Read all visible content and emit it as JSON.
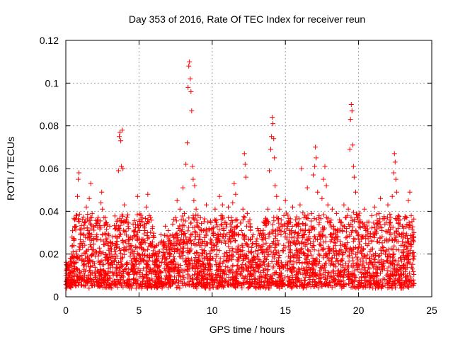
{
  "chart_data": {
    "type": "scatter",
    "title": "Day 353 of 2016, Rate Of TEC Index for receiver reun",
    "xlabel": "GPS time / hours",
    "ylabel": "ROTI / TECUs",
    "xlim": [
      0,
      25
    ],
    "ylim": [
      0,
      0.12
    ],
    "grid": true,
    "marker": "+",
    "marker_color": "#ff0000",
    "x_ticks": [
      0,
      5,
      10,
      15,
      20,
      25
    ],
    "x_tick_labels": [
      "0",
      "5",
      "10",
      "15",
      "20",
      "25"
    ],
    "y_ticks": [
      0,
      0.02,
      0.04,
      0.06,
      0.08,
      0.1,
      0.12
    ],
    "y_tick_labels": [
      "0",
      "0.02",
      "0.04",
      "0.06",
      "0.08",
      "0.1",
      "0.12"
    ],
    "series": [
      {
        "name": "ROTI",
        "points": [
          [
            0.05,
            0.011
          ],
          [
            0.1,
            0.015
          ],
          [
            0.2,
            0.009
          ],
          [
            0.3,
            0.018
          ],
          [
            0.4,
            0.012
          ],
          [
            0.5,
            0.021
          ],
          [
            0.6,
            0.014
          ],
          [
            0.7,
            0.033
          ],
          [
            0.75,
            0.038
          ],
          [
            0.8,
            0.047
          ],
          [
            0.85,
            0.055
          ],
          [
            0.9,
            0.058
          ],
          [
            1.0,
            0.029
          ],
          [
            1.1,
            0.017
          ],
          [
            1.2,
            0.026
          ],
          [
            1.3,
            0.035
          ],
          [
            1.4,
            0.042
          ],
          [
            1.5,
            0.031
          ],
          [
            1.6,
            0.046
          ],
          [
            1.7,
            0.053
          ],
          [
            1.8,
            0.039
          ],
          [
            1.9,
            0.022
          ],
          [
            2.0,
            0.019
          ],
          [
            2.1,
            0.028
          ],
          [
            2.2,
            0.035
          ],
          [
            2.3,
            0.016
          ],
          [
            2.4,
            0.044
          ],
          [
            2.45,
            0.049
          ],
          [
            2.5,
            0.041
          ],
          [
            2.6,
            0.037
          ],
          [
            2.7,
            0.029
          ],
          [
            2.8,
            0.018
          ],
          [
            2.9,
            0.024
          ],
          [
            3.0,
            0.033
          ],
          [
            3.1,
            0.021
          ],
          [
            3.2,
            0.028
          ],
          [
            3.3,
            0.017
          ],
          [
            3.4,
            0.032
          ],
          [
            3.5,
            0.026
          ],
          [
            3.6,
            0.059
          ],
          [
            3.65,
            0.075
          ],
          [
            3.7,
            0.077
          ],
          [
            3.75,
            0.073
          ],
          [
            3.8,
            0.061
          ],
          [
            3.85,
            0.078
          ],
          [
            3.9,
            0.06
          ],
          [
            4.0,
            0.043
          ],
          [
            4.1,
            0.022
          ],
          [
            4.2,
            0.016
          ],
          [
            4.3,
            0.028
          ],
          [
            4.4,
            0.019
          ],
          [
            4.5,
            0.024
          ],
          [
            4.6,
            0.034
          ],
          [
            4.7,
            0.013
          ],
          [
            4.8,
            0.029
          ],
          [
            4.9,
            0.047
          ],
          [
            5.0,
            0.036
          ],
          [
            5.1,
            0.018
          ],
          [
            5.2,
            0.027
          ],
          [
            5.3,
            0.022
          ],
          [
            5.4,
            0.031
          ],
          [
            5.5,
            0.042
          ],
          [
            5.6,
            0.048
          ],
          [
            5.7,
            0.038
          ],
          [
            5.8,
            0.025
          ],
          [
            5.9,
            0.019
          ],
          [
            6.0,
            0.028
          ],
          [
            6.1,
            0.016
          ],
          [
            6.2,
            0.024
          ],
          [
            6.3,
            0.021
          ],
          [
            6.4,
            0.012
          ],
          [
            6.5,
            0.029
          ],
          [
            6.6,
            0.018
          ],
          [
            6.7,
            0.026
          ],
          [
            6.8,
            0.033
          ],
          [
            6.9,
            0.022
          ],
          [
            7.0,
            0.031
          ],
          [
            7.1,
            0.019
          ],
          [
            7.2,
            0.025
          ],
          [
            7.3,
            0.034
          ],
          [
            7.4,
            0.028
          ],
          [
            7.5,
            0.037
          ],
          [
            7.6,
            0.045
          ],
          [
            7.7,
            0.032
          ],
          [
            7.8,
            0.041
          ],
          [
            7.9,
            0.029
          ],
          [
            8.0,
            0.051
          ],
          [
            8.1,
            0.039
          ],
          [
            8.2,
            0.062
          ],
          [
            8.3,
            0.072
          ],
          [
            8.35,
            0.098
          ],
          [
            8.4,
            0.108
          ],
          [
            8.45,
            0.11
          ],
          [
            8.5,
            0.102
          ],
          [
            8.55,
            0.096
          ],
          [
            8.6,
            0.087
          ],
          [
            8.65,
            0.061
          ],
          [
            8.7,
            0.055
          ],
          [
            8.75,
            0.045
          ],
          [
            8.8,
            0.052
          ],
          [
            8.9,
            0.041
          ],
          [
            9.0,
            0.033
          ],
          [
            9.1,
            0.028
          ],
          [
            9.2,
            0.037
          ],
          [
            9.3,
            0.022
          ],
          [
            9.4,
            0.031
          ],
          [
            9.5,
            0.026
          ],
          [
            9.6,
            0.043
          ],
          [
            9.7,
            0.035
          ],
          [
            9.8,
            0.018
          ],
          [
            9.9,
            0.027
          ],
          [
            10.0,
            0.032
          ],
          [
            10.1,
            0.024
          ],
          [
            10.2,
            0.041
          ],
          [
            10.3,
            0.036
          ],
          [
            10.4,
            0.029
          ],
          [
            10.5,
            0.047
          ],
          [
            10.6,
            0.038
          ],
          [
            10.7,
            0.043
          ],
          [
            10.8,
            0.031
          ],
          [
            10.9,
            0.025
          ],
          [
            11.0,
            0.034
          ],
          [
            11.1,
            0.042
          ],
          [
            11.2,
            0.028
          ],
          [
            11.3,
            0.037
          ],
          [
            11.4,
            0.044
          ],
          [
            11.5,
            0.053
          ],
          [
            11.6,
            0.048
          ],
          [
            11.7,
            0.036
          ],
          [
            11.8,
            0.029
          ],
          [
            11.9,
            0.022
          ],
          [
            12.0,
            0.031
          ],
          [
            12.1,
            0.041
          ],
          [
            12.2,
            0.067
          ],
          [
            12.25,
            0.062
          ],
          [
            12.3,
            0.056
          ],
          [
            12.4,
            0.039
          ],
          [
            12.5,
            0.027
          ],
          [
            12.6,
            0.033
          ],
          [
            12.7,
            0.021
          ],
          [
            12.8,
            0.029
          ],
          [
            12.9,
            0.018
          ],
          [
            13.0,
            0.025
          ],
          [
            13.1,
            0.032
          ],
          [
            13.2,
            0.024
          ],
          [
            13.3,
            0.031
          ],
          [
            13.4,
            0.027
          ],
          [
            13.5,
            0.035
          ],
          [
            13.6,
            0.029
          ],
          [
            13.7,
            0.022
          ],
          [
            13.8,
            0.041
          ],
          [
            13.9,
            0.059
          ],
          [
            14.0,
            0.069
          ],
          [
            14.05,
            0.075
          ],
          [
            14.1,
            0.084
          ],
          [
            14.15,
            0.081
          ],
          [
            14.2,
            0.074
          ],
          [
            14.25,
            0.065
          ],
          [
            14.3,
            0.052
          ],
          [
            14.4,
            0.047
          ],
          [
            14.5,
            0.036
          ],
          [
            14.6,
            0.041
          ],
          [
            14.7,
            0.029
          ],
          [
            14.8,
            0.033
          ],
          [
            14.9,
            0.038
          ],
          [
            15.0,
            0.045
          ],
          [
            15.1,
            0.027
          ],
          [
            15.2,
            0.034
          ],
          [
            15.3,
            0.022
          ],
          [
            15.4,
            0.031
          ],
          [
            15.5,
            0.042
          ],
          [
            15.6,
            0.028
          ],
          [
            15.7,
            0.036
          ],
          [
            15.8,
            0.025
          ],
          [
            15.9,
            0.033
          ],
          [
            16.0,
            0.043
          ],
          [
            16.1,
            0.06
          ],
          [
            16.2,
            0.034
          ],
          [
            16.3,
            0.029
          ],
          [
            16.4,
            0.037
          ],
          [
            16.5,
            0.051
          ],
          [
            16.6,
            0.031
          ],
          [
            16.7,
            0.025
          ],
          [
            16.8,
            0.039
          ],
          [
            16.9,
            0.057
          ],
          [
            17.0,
            0.061
          ],
          [
            17.05,
            0.07
          ],
          [
            17.1,
            0.065
          ],
          [
            17.2,
            0.049
          ],
          [
            17.3,
            0.038
          ],
          [
            17.4,
            0.027
          ],
          [
            17.5,
            0.046
          ],
          [
            17.6,
            0.055
          ],
          [
            17.7,
            0.061
          ],
          [
            17.8,
            0.052
          ],
          [
            17.9,
            0.043
          ],
          [
            18.0,
            0.035
          ],
          [
            18.1,
            0.029
          ],
          [
            18.2,
            0.041
          ],
          [
            18.3,
            0.033
          ],
          [
            18.4,
            0.024
          ],
          [
            18.5,
            0.039
          ],
          [
            18.6,
            0.028
          ],
          [
            18.7,
            0.036
          ],
          [
            18.8,
            0.022
          ],
          [
            18.9,
            0.031
          ],
          [
            19.0,
            0.043
          ],
          [
            19.1,
            0.037
          ],
          [
            19.2,
            0.028
          ],
          [
            19.3,
            0.041
          ],
          [
            19.4,
            0.069
          ],
          [
            19.45,
            0.083
          ],
          [
            19.5,
            0.09
          ],
          [
            19.55,
            0.087
          ],
          [
            19.6,
            0.071
          ],
          [
            19.65,
            0.061
          ],
          [
            19.7,
            0.056
          ],
          [
            19.8,
            0.049
          ],
          [
            19.9,
            0.037
          ],
          [
            20.0,
            0.029
          ],
          [
            20.1,
            0.036
          ],
          [
            20.2,
            0.027
          ],
          [
            20.3,
            0.033
          ],
          [
            20.4,
            0.041
          ],
          [
            20.5,
            0.031
          ],
          [
            20.6,
            0.024
          ],
          [
            20.7,
            0.035
          ],
          [
            20.8,
            0.028
          ],
          [
            20.9,
            0.038
          ],
          [
            21.0,
            0.029
          ],
          [
            21.1,
            0.042
          ],
          [
            21.2,
            0.034
          ],
          [
            21.3,
            0.026
          ],
          [
            21.4,
            0.039
          ],
          [
            21.5,
            0.046
          ],
          [
            21.6,
            0.031
          ],
          [
            21.7,
            0.023
          ],
          [
            21.8,
            0.034
          ],
          [
            21.9,
            0.027
          ],
          [
            22.0,
            0.043
          ],
          [
            22.1,
            0.036
          ],
          [
            22.2,
            0.029
          ],
          [
            22.3,
            0.047
          ],
          [
            22.4,
            0.058
          ],
          [
            22.45,
            0.067
          ],
          [
            22.5,
            0.063
          ],
          [
            22.55,
            0.055
          ],
          [
            22.6,
            0.049
          ],
          [
            22.7,
            0.038
          ],
          [
            22.8,
            0.029
          ],
          [
            22.9,
            0.024
          ],
          [
            23.0,
            0.033
          ],
          [
            23.1,
            0.022
          ],
          [
            23.2,
            0.028
          ],
          [
            23.3,
            0.037
          ],
          [
            23.4,
            0.045
          ],
          [
            23.5,
            0.049
          ],
          [
            23.6,
            0.038
          ],
          [
            23.7,
            0.027
          ],
          [
            23.8,
            0.019
          ]
        ]
      }
    ]
  }
}
